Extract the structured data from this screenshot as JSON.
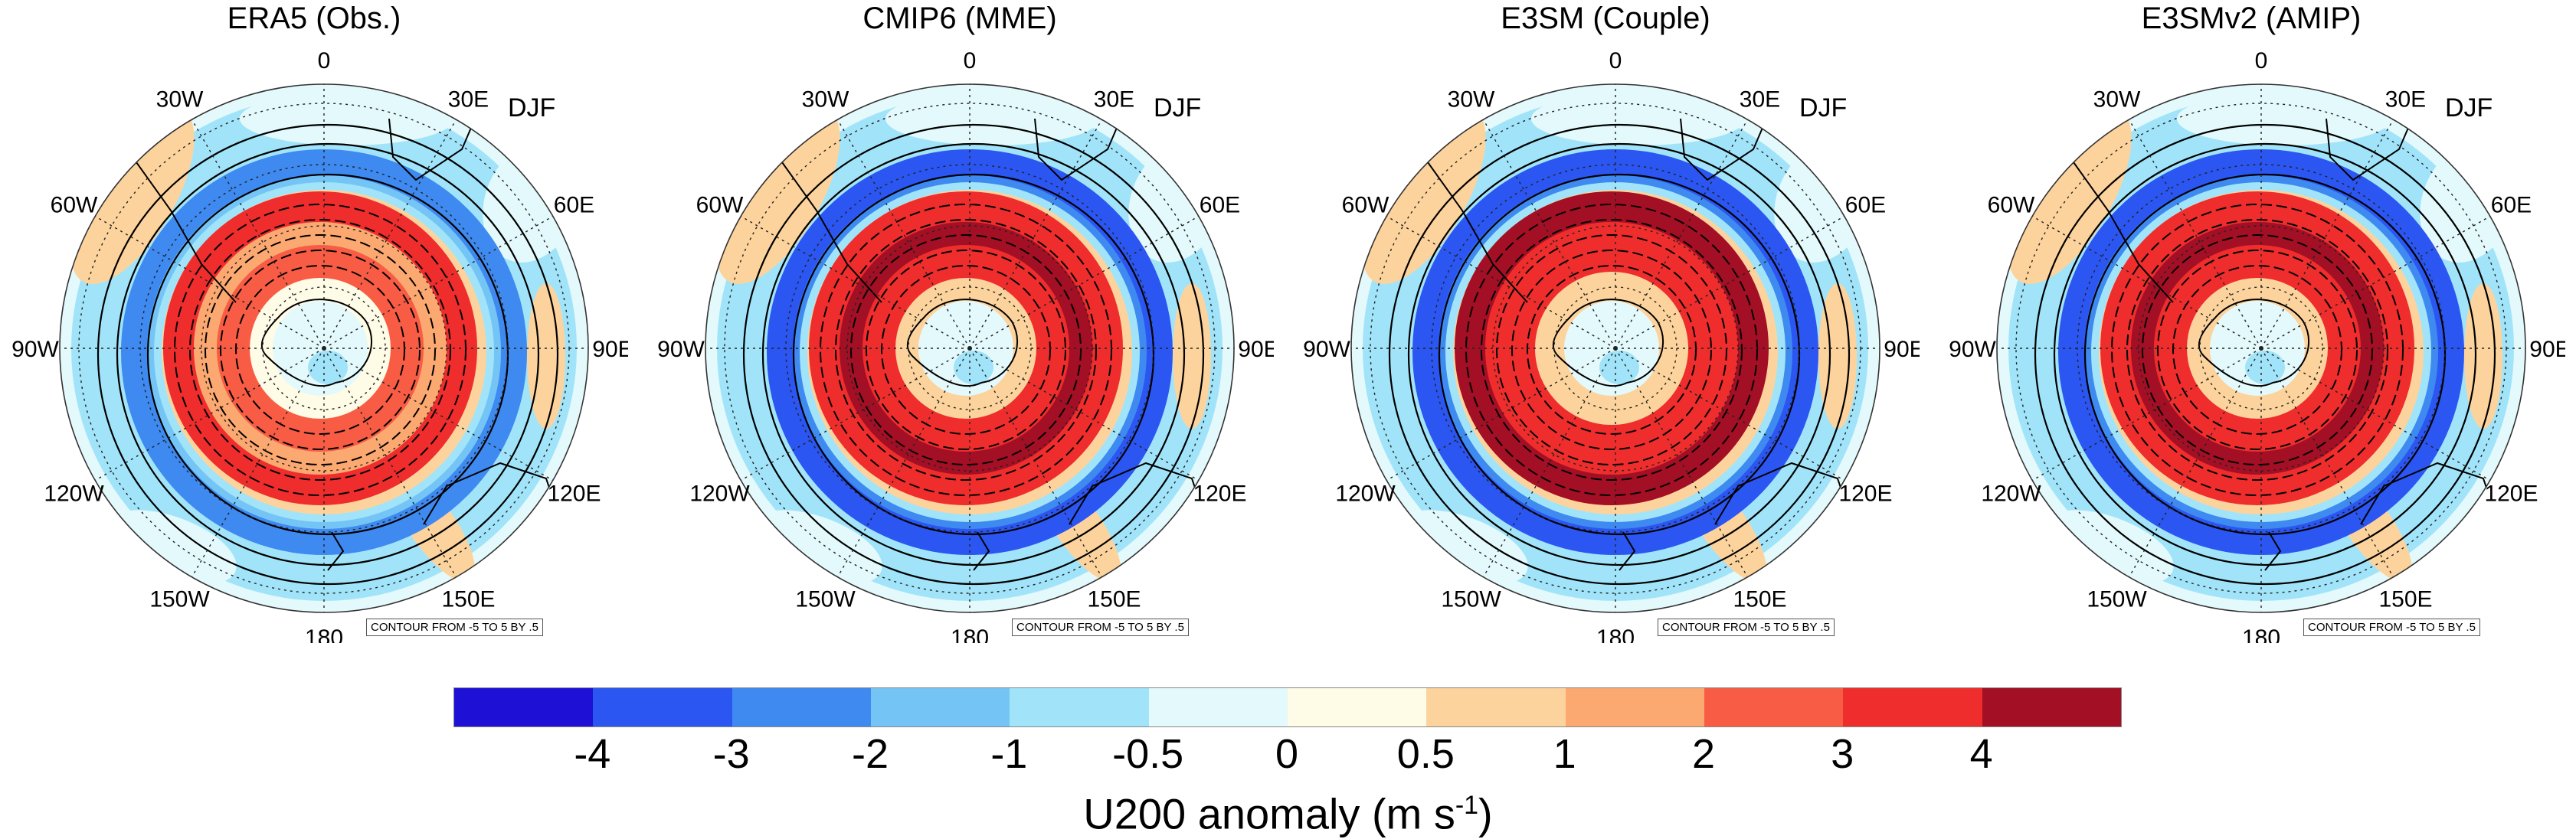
{
  "season": "DJF",
  "panels": [
    {
      "title": "ERA5 (Obs.)",
      "variant": "era5"
    },
    {
      "title": "CMIP6 (MME)",
      "variant": "cmip6"
    },
    {
      "title": "E3SM (Couple)",
      "variant": "e3sm"
    },
    {
      "title": "E3SMv2 (AMIP)",
      "variant": "amip"
    }
  ],
  "longitude_labels": [
    "0",
    "30E",
    "60E",
    "90E",
    "120E",
    "150E",
    "180",
    "150W",
    "120W",
    "90W",
    "60W",
    "30W"
  ],
  "contour_note": "CONTOUR FROM -5 TO 5 BY .5",
  "colorbar": {
    "colors": [
      "#1f10d6",
      "#2b56f2",
      "#3f8af0",
      "#74c5f5",
      "#a1e4fa",
      "#e4f9fb",
      "#fefbe6",
      "#fdd39d",
      "#fca871",
      "#f85c44",
      "#ef2d2d",
      "#a30f24"
    ],
    "tick_labels": [
      "-4",
      "-3",
      "-2",
      "-1",
      "-0.5",
      "0",
      "0.5",
      "1",
      "2",
      "3",
      "4"
    ],
    "title_main": "U200 anomaly (m s",
    "title_sup": "-1",
    "title_end": ")"
  }
}
